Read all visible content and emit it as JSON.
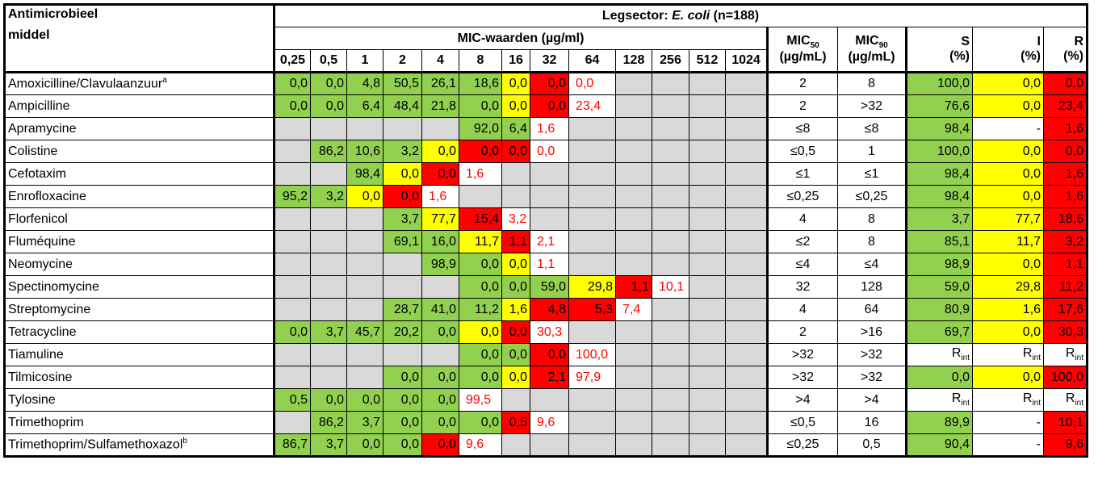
{
  "header": {
    "antimicrobial_label_line1": "Antimicrobieel",
    "antimicrobial_label_line2": "middel",
    "sector_prefix": "Legsector: ",
    "sector_species": "E. coli",
    "sector_n": "  (n=188)",
    "mic_values_label": "MIC-waarden (µg/ml)",
    "mic_columns": [
      "0,25",
      "0,5",
      "1",
      "2",
      "4",
      "8",
      "16",
      "32",
      "64",
      "128",
      "256",
      "512",
      "1024"
    ],
    "mic50_label": "MIC",
    "mic50_sub": "50",
    "mic90_label": "MIC",
    "mic90_sub": "90",
    "unit_label": "(µg/mL)",
    "s_label": "S",
    "i_label": "I",
    "r_label": "R",
    "pct_label": "(%)"
  },
  "legend_colors": {
    "susceptible": "#92d050",
    "intermediate": "#ffff00",
    "resistant": "#ff0000",
    "not_tested": "#d9d9d9"
  },
  "rows": [
    {
      "name": "Amoxicilline/Clavulaanzuur",
      "sup": "a",
      "cells": [
        [
          "0,0",
          "g"
        ],
        [
          "0,0",
          "g"
        ],
        [
          "4,8",
          "g"
        ],
        [
          "50,5",
          "g"
        ],
        [
          "26,1",
          "g"
        ],
        [
          "18,6",
          "g"
        ],
        [
          "0,0",
          "y"
        ],
        [
          "0,0",
          "r"
        ],
        [
          "0,0",
          "rt"
        ],
        [
          "",
          "e"
        ],
        [
          "",
          "e"
        ],
        [
          "",
          "e"
        ],
        [
          "",
          "e"
        ]
      ],
      "mic50": "2",
      "mic90": "8",
      "s": "100,0",
      "i": "0,0",
      "r": "0,0",
      "sc": "g",
      "ic": "y",
      "rc": "r"
    },
    {
      "name": "Ampicilline",
      "sup": "",
      "cells": [
        [
          "0,0",
          "g"
        ],
        [
          "0,0",
          "g"
        ],
        [
          "6,4",
          "g"
        ],
        [
          "48,4",
          "g"
        ],
        [
          "21,8",
          "g"
        ],
        [
          "0,0",
          "g"
        ],
        [
          "0,0",
          "y"
        ],
        [
          "0,0",
          "r"
        ],
        [
          "23,4",
          "rt"
        ],
        [
          "",
          "e"
        ],
        [
          "",
          "e"
        ],
        [
          "",
          "e"
        ],
        [
          "",
          "e"
        ]
      ],
      "mic50": "2",
      "mic90": ">32",
      "s": "76,6",
      "i": "0,0",
      "r": "23,4",
      "sc": "g",
      "ic": "y",
      "rc": "r"
    },
    {
      "name": "Apramycine",
      "sup": "",
      "cells": [
        [
          "",
          "e"
        ],
        [
          "",
          "e"
        ],
        [
          "",
          "e"
        ],
        [
          "",
          "e"
        ],
        [
          "",
          "e"
        ],
        [
          "92,0",
          "g"
        ],
        [
          "6,4",
          "g"
        ],
        [
          "1,6",
          "rt"
        ],
        [
          "",
          "e"
        ],
        [
          "",
          "e"
        ],
        [
          "",
          "e"
        ],
        [
          "",
          "e"
        ],
        [
          "",
          "e"
        ]
      ],
      "mic50": "≤8",
      "mic90": "≤8",
      "s": "98,4",
      "i": "-",
      "r": "1,6",
      "sc": "g",
      "ic": "w",
      "rc": "r"
    },
    {
      "name": "Colistine",
      "sup": "",
      "cells": [
        [
          "",
          "e"
        ],
        [
          "86,2",
          "g"
        ],
        [
          "10,6",
          "g"
        ],
        [
          "3,2",
          "g"
        ],
        [
          "0,0",
          "y"
        ],
        [
          "0,0",
          "r"
        ],
        [
          "0,0",
          "r"
        ],
        [
          "0,0",
          "rt"
        ],
        [
          "",
          "e"
        ],
        [
          "",
          "e"
        ],
        [
          "",
          "e"
        ],
        [
          "",
          "e"
        ],
        [
          "",
          "e"
        ]
      ],
      "mic50": "≤0,5",
      "mic90": "1",
      "s": "100,0",
      "i": "0,0",
      "r": "0,0",
      "sc": "g",
      "ic": "y",
      "rc": "r"
    },
    {
      "name": "Cefotaxim",
      "sup": "",
      "cells": [
        [
          "",
          "e"
        ],
        [
          "",
          "e"
        ],
        [
          "98,4",
          "g"
        ],
        [
          "0,0",
          "y"
        ],
        [
          "0,0",
          "r"
        ],
        [
          "1,6",
          "rt"
        ],
        [
          "",
          "e"
        ],
        [
          "",
          "e"
        ],
        [
          "",
          "e"
        ],
        [
          "",
          "e"
        ],
        [
          "",
          "e"
        ],
        [
          "",
          "e"
        ],
        [
          "",
          "e"
        ]
      ],
      "mic50": "≤1",
      "mic90": "≤1",
      "s": "98,4",
      "i": "0,0",
      "r": "1,6",
      "sc": "g",
      "ic": "y",
      "rc": "r"
    },
    {
      "name": "Enrofloxacine",
      "sup": "",
      "cells": [
        [
          "95,2",
          "g"
        ],
        [
          "3,2",
          "g"
        ],
        [
          "0,0",
          "y"
        ],
        [
          "0,0",
          "r"
        ],
        [
          "1,6",
          "rt"
        ],
        [
          "",
          "e"
        ],
        [
          "",
          "e"
        ],
        [
          "",
          "e"
        ],
        [
          "",
          "e"
        ],
        [
          "",
          "e"
        ],
        [
          "",
          "e"
        ],
        [
          "",
          "e"
        ],
        [
          "",
          "e"
        ]
      ],
      "mic50": "≤0,25",
      "mic90": "≤0,25",
      "s": "98,4",
      "i": "0,0",
      "r": "1,6",
      "sc": "g",
      "ic": "y",
      "rc": "r"
    },
    {
      "name": "Florfenicol",
      "sup": "",
      "cells": [
        [
          "",
          "e"
        ],
        [
          "",
          "e"
        ],
        [
          "",
          "e"
        ],
        [
          "3,7",
          "g"
        ],
        [
          "77,7",
          "y"
        ],
        [
          "15,4",
          "r"
        ],
        [
          "3,2",
          "rt"
        ],
        [
          "",
          "e"
        ],
        [
          "",
          "e"
        ],
        [
          "",
          "e"
        ],
        [
          "",
          "e"
        ],
        [
          "",
          "e"
        ],
        [
          "",
          "e"
        ]
      ],
      "mic50": "4",
      "mic90": "8",
      "s": "3,7",
      "i": "77,7",
      "r": "18,6",
      "sc": "g",
      "ic": "y",
      "rc": "r"
    },
    {
      "name": "Fluméquine",
      "sup": "",
      "cells": [
        [
          "",
          "e"
        ],
        [
          "",
          "e"
        ],
        [
          "",
          "e"
        ],
        [
          "69,1",
          "g"
        ],
        [
          "16,0",
          "g"
        ],
        [
          "11,7",
          "y"
        ],
        [
          "1,1",
          "r"
        ],
        [
          "2,1",
          "rt"
        ],
        [
          "",
          "e"
        ],
        [
          "",
          "e"
        ],
        [
          "",
          "e"
        ],
        [
          "",
          "e"
        ],
        [
          "",
          "e"
        ]
      ],
      "mic50": "≤2",
      "mic90": "8",
      "s": "85,1",
      "i": "11,7",
      "r": "3,2",
      "sc": "g",
      "ic": "y",
      "rc": "r"
    },
    {
      "name": "Neomycine",
      "sup": "",
      "cells": [
        [
          "",
          "e"
        ],
        [
          "",
          "e"
        ],
        [
          "",
          "e"
        ],
        [
          "",
          "e"
        ],
        [
          "98,9",
          "g"
        ],
        [
          "0,0",
          "g"
        ],
        [
          "0,0",
          "y"
        ],
        [
          "1,1",
          "rt"
        ],
        [
          "",
          "e"
        ],
        [
          "",
          "e"
        ],
        [
          "",
          "e"
        ],
        [
          "",
          "e"
        ],
        [
          "",
          "e"
        ]
      ],
      "mic50": "≤4",
      "mic90": "≤4",
      "s": "98,9",
      "i": "0,0",
      "r": "1,1",
      "sc": "g",
      "ic": "y",
      "rc": "r"
    },
    {
      "name": "Spectinomycine",
      "sup": "",
      "cells": [
        [
          "",
          "e"
        ],
        [
          "",
          "e"
        ],
        [
          "",
          "e"
        ],
        [
          "",
          "e"
        ],
        [
          "",
          "e"
        ],
        [
          "0,0",
          "g"
        ],
        [
          "0,0",
          "g"
        ],
        [
          "59,0",
          "g"
        ],
        [
          "29,8",
          "y"
        ],
        [
          "1,1",
          "r"
        ],
        [
          "10,1",
          "rt"
        ],
        [
          "",
          "e"
        ],
        [
          "",
          "e"
        ]
      ],
      "mic50": "32",
      "mic90": "128",
      "s": "59,0",
      "i": "29,8",
      "r": "11,2",
      "sc": "g",
      "ic": "y",
      "rc": "r"
    },
    {
      "name": "Streptomycine",
      "sup": "",
      "cells": [
        [
          "",
          "e"
        ],
        [
          "",
          "e"
        ],
        [
          "",
          "e"
        ],
        [
          "28,7",
          "g"
        ],
        [
          "41,0",
          "g"
        ],
        [
          "11,2",
          "g"
        ],
        [
          "1,6",
          "y"
        ],
        [
          "4,8",
          "r"
        ],
        [
          "5,3",
          "r"
        ],
        [
          "7,4",
          "rt"
        ],
        [
          "",
          "e"
        ],
        [
          "",
          "e"
        ],
        [
          "",
          "e"
        ]
      ],
      "mic50": "4",
      "mic90": "64",
      "s": "80,9",
      "i": "1,6",
      "r": "17,6",
      "sc": "g",
      "ic": "y",
      "rc": "r"
    },
    {
      "name": "Tetracycline",
      "sup": "",
      "cells": [
        [
          "0,0",
          "g"
        ],
        [
          "3,7",
          "g"
        ],
        [
          "45,7",
          "g"
        ],
        [
          "20,2",
          "g"
        ],
        [
          "0,0",
          "g"
        ],
        [
          "0,0",
          "y"
        ],
        [
          "0,0",
          "r"
        ],
        [
          "30,3",
          "rt"
        ],
        [
          "",
          "e"
        ],
        [
          "",
          "e"
        ],
        [
          "",
          "e"
        ],
        [
          "",
          "e"
        ],
        [
          "",
          "e"
        ]
      ],
      "mic50": "2",
      "mic90": ">16",
      "s": "69,7",
      "i": "0,0",
      "r": "30,3",
      "sc": "g",
      "ic": "y",
      "rc": "r"
    },
    {
      "name": "Tiamuline",
      "sup": "",
      "cells": [
        [
          "",
          "e"
        ],
        [
          "",
          "e"
        ],
        [
          "",
          "e"
        ],
        [
          "",
          "e"
        ],
        [
          "",
          "e"
        ],
        [
          "0,0",
          "g"
        ],
        [
          "0,0",
          "g"
        ],
        [
          "0,0",
          "r"
        ],
        [
          "100,0",
          "rt"
        ],
        [
          "",
          "e"
        ],
        [
          "",
          "e"
        ],
        [
          "",
          "e"
        ],
        [
          "",
          "e"
        ]
      ],
      "mic50": ">32",
      "mic90": ">32",
      "s": "R",
      "i": "R",
      "r": "R",
      "sub": "int",
      "sc": "w",
      "ic": "w",
      "rc": "w"
    },
    {
      "name": "Tilmicosine",
      "sup": "",
      "cells": [
        [
          "",
          "e"
        ],
        [
          "",
          "e"
        ],
        [
          "",
          "e"
        ],
        [
          "0,0",
          "g"
        ],
        [
          "0,0",
          "g"
        ],
        [
          "0,0",
          "g"
        ],
        [
          "0,0",
          "y"
        ],
        [
          "2,1",
          "r"
        ],
        [
          "97,9",
          "rt"
        ],
        [
          "",
          "e"
        ],
        [
          "",
          "e"
        ],
        [
          "",
          "e"
        ],
        [
          "",
          "e"
        ]
      ],
      "mic50": ">32",
      "mic90": ">32",
      "s": "0,0",
      "i": "0,0",
      "r": "100,0",
      "sc": "g",
      "ic": "y",
      "rc": "r"
    },
    {
      "name": "Tylosine",
      "sup": "",
      "cells": [
        [
          "0,5",
          "g"
        ],
        [
          "0,0",
          "g"
        ],
        [
          "0,0",
          "g"
        ],
        [
          "0,0",
          "g"
        ],
        [
          "0,0",
          "g"
        ],
        [
          "99,5",
          "rt"
        ],
        [
          "",
          "e"
        ],
        [
          "",
          "e"
        ],
        [
          "",
          "e"
        ],
        [
          "",
          "e"
        ],
        [
          "",
          "e"
        ],
        [
          "",
          "e"
        ],
        [
          "",
          "e"
        ]
      ],
      "mic50": ">4",
      "mic90": ">4",
      "s": "R",
      "i": "R",
      "r": "R",
      "sub": "int",
      "sc": "w",
      "ic": "w",
      "rc": "w"
    },
    {
      "name": "Trimethoprim",
      "sup": "",
      "cells": [
        [
          "",
          "e"
        ],
        [
          "86,2",
          "g"
        ],
        [
          "3,7",
          "g"
        ],
        [
          "0,0",
          "g"
        ],
        [
          "0,0",
          "g"
        ],
        [
          "0,0",
          "g"
        ],
        [
          "0,5",
          "r"
        ],
        [
          "9,6",
          "rt"
        ],
        [
          "",
          "e"
        ],
        [
          "",
          "e"
        ],
        [
          "",
          "e"
        ],
        [
          "",
          "e"
        ],
        [
          "",
          "e"
        ]
      ],
      "mic50": "≤0,5",
      "mic90": "16",
      "s": "89,9",
      "i": "-",
      "r": "10,1",
      "sc": "g",
      "ic": "w",
      "rc": "r"
    },
    {
      "name": "Trimethoprim/Sulfamethoxazol",
      "sup": "b",
      "cells": [
        [
          "86,7",
          "g"
        ],
        [
          "3,7",
          "g"
        ],
        [
          "0,0",
          "g"
        ],
        [
          "0,0",
          "g"
        ],
        [
          "0,0",
          "r"
        ],
        [
          "9,6",
          "rt"
        ],
        [
          "",
          "e"
        ],
        [
          "",
          "e"
        ],
        [
          "",
          "e"
        ],
        [
          "",
          "e"
        ],
        [
          "",
          "e"
        ],
        [
          "",
          "e"
        ],
        [
          "",
          "e"
        ]
      ],
      "mic50": "≤0,25",
      "mic90": "0,5",
      "s": "90,4",
      "i": "-",
      "r": "9,6",
      "sc": "g",
      "ic": "w",
      "rc": "r"
    }
  ]
}
